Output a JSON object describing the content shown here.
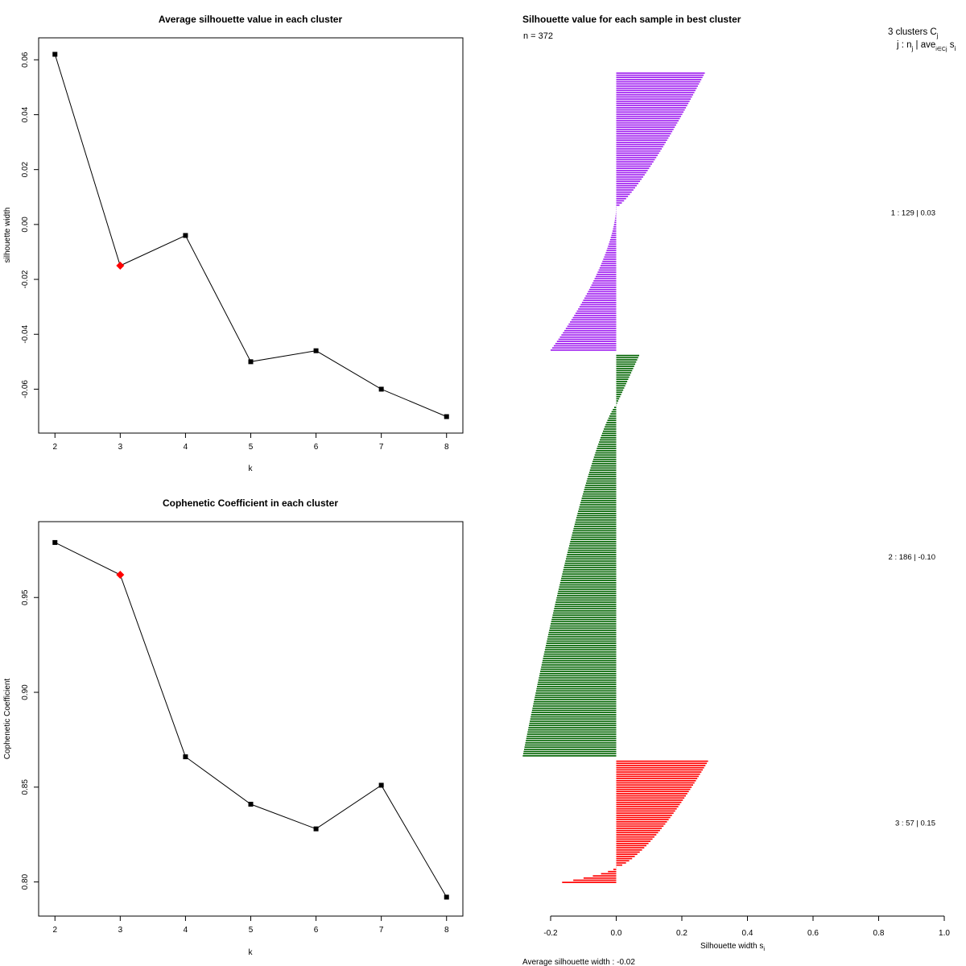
{
  "chart_data": [
    {
      "type": "line",
      "title": "Average silhouette value in each cluster",
      "xlabel": "k",
      "ylabel": "silhouette width",
      "x": [
        2,
        3,
        4,
        5,
        6,
        7,
        8
      ],
      "values": [
        0.062,
        -0.015,
        -0.004,
        -0.05,
        -0.046,
        -0.06,
        -0.07
      ],
      "highlight_k": 3,
      "xlim": [
        1.75,
        8.25
      ],
      "ylim": [
        -0.076,
        0.068
      ],
      "yticks": [
        "0.06",
        "0.04",
        "0.02",
        "0.00",
        "-0.02",
        "-0.04",
        "-0.06"
      ],
      "ytick_values": [
        0.06,
        0.04,
        0.02,
        0.0,
        -0.02,
        -0.04,
        -0.06
      ],
      "xticks": [
        "2",
        "3",
        "4",
        "5",
        "6",
        "7",
        "8"
      ],
      "colors": {
        "line": "#000000",
        "point": "#000000",
        "highlight": "#ff0000"
      }
    },
    {
      "type": "line",
      "title": "Cophenetic Coefficient in each cluster",
      "xlabel": "k",
      "ylabel": "Cophenetic Coefficient",
      "x": [
        2,
        3,
        4,
        5,
        6,
        7,
        8
      ],
      "values": [
        0.979,
        0.962,
        0.866,
        0.841,
        0.828,
        0.851,
        0.792
      ],
      "highlight_k": 3,
      "xlim": [
        1.75,
        8.25
      ],
      "ylim": [
        0.782,
        0.99
      ],
      "yticks": [
        "0.80",
        "0.85",
        "0.90",
        "0.95"
      ],
      "ytick_values": [
        0.8,
        0.85,
        0.9,
        0.95
      ],
      "xticks": [
        "2",
        "3",
        "4",
        "5",
        "6",
        "7",
        "8"
      ],
      "colors": {
        "line": "#000000",
        "point": "#000000",
        "highlight": "#ff0000"
      }
    },
    {
      "type": "bar",
      "orientation": "horizontal",
      "title": "Silhouette value for each sample in best cluster",
      "n_label": "n = 372",
      "header_line1": "3  clusters  C",
      "header_sub1": "j",
      "header_line2": "j :  n",
      "header_sub2": "j",
      "header_line2b": " | ave",
      "header_sub3": "i∈Cj",
      "header_line2c": "  s",
      "header_sub4": "i",
      "xlabel": "Silhouette width s",
      "xlabel_sub": "i",
      "xlim": [
        -0.2,
        1.0
      ],
      "xticks": [
        "-0.2",
        "0.0",
        "0.2",
        "0.4",
        "0.6",
        "0.8",
        "1.0"
      ],
      "xtick_values": [
        -0.2,
        0.0,
        0.2,
        0.4,
        0.6,
        0.8,
        1.0
      ],
      "footer": "Average silhouette width :  -0.02",
      "clusters": [
        {
          "id": 1,
          "label": "1 :   129  |  0.03",
          "n": 129,
          "avg": 0.03,
          "color": "#a020f0",
          "max": 0.27,
          "min": -0.2,
          "pos_count": 63,
          "pos_shape": 0.8,
          "neg_shape": 1.6
        },
        {
          "id": 2,
          "label": "2 :   186  |  -0.10",
          "n": 186,
          "avg": -0.1,
          "color": "#006400",
          "max": 0.07,
          "min": -0.285,
          "pos_count": 24,
          "pos_shape": 1.0,
          "neg_shape": 0.75
        },
        {
          "id": 3,
          "label": "3 :   57  |  0.15",
          "n": 57,
          "avg": 0.15,
          "color": "#ff0000",
          "max": 0.28,
          "min": -0.165,
          "pos_count": 50,
          "pos_shape": 0.7,
          "neg_shape": 1.5
        }
      ]
    }
  ]
}
